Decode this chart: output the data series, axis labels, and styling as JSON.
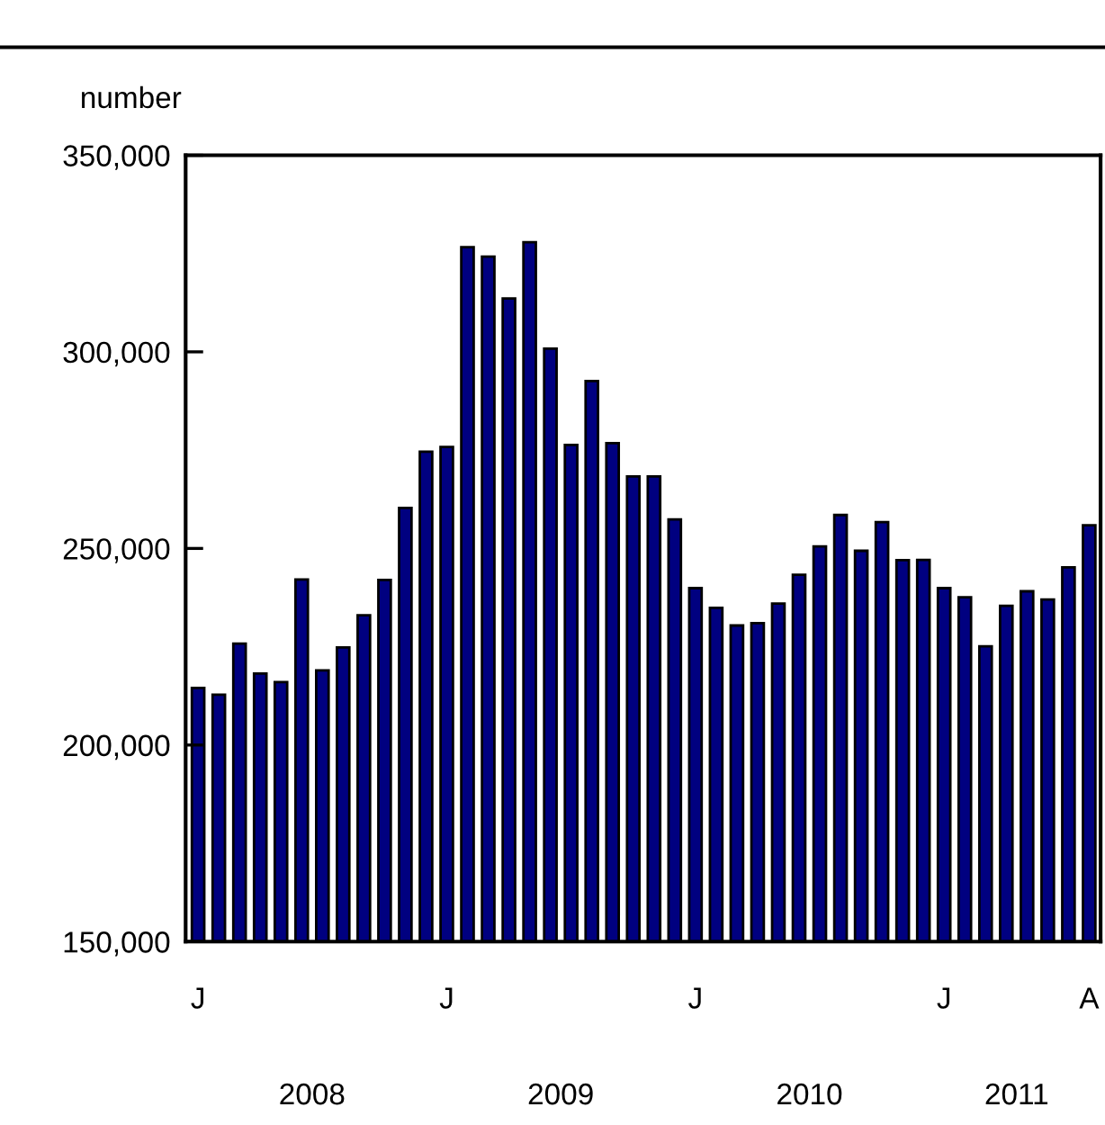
{
  "chart_data": {
    "type": "bar",
    "ylabel": "number",
    "categories": [
      "J",
      null,
      null,
      null,
      null,
      null,
      null,
      null,
      null,
      null,
      null,
      null,
      "J",
      null,
      null,
      null,
      null,
      null,
      null,
      null,
      null,
      null,
      null,
      null,
      "J",
      null,
      null,
      null,
      null,
      null,
      null,
      null,
      null,
      null,
      null,
      null,
      "J",
      null,
      null,
      null,
      null,
      null,
      null,
      "A"
    ],
    "values": [
      214500,
      212800,
      225800,
      218200,
      216000,
      242100,
      219000,
      224800,
      233000,
      242000,
      260300,
      274600,
      275800,
      326600,
      324200,
      313600,
      327900,
      300800,
      276300,
      292600,
      276800,
      268300,
      268300,
      257400,
      239900,
      234900,
      230400,
      231000,
      236000,
      243300,
      250500,
      258500,
      249400,
      256700,
      247000,
      247100,
      239900,
      237600,
      225100,
      235400,
      239100,
      237000,
      245200,
      255900
    ],
    "color": "#000080",
    "ylim": [
      150000,
      350000
    ],
    "yticks": [
      {
        "value": 150000,
        "label": "150,000"
      },
      {
        "value": 200000,
        "label": "200,000"
      },
      {
        "value": 250000,
        "label": "250,000"
      },
      {
        "value": 300000,
        "label": "300,000"
      },
      {
        "value": 350000,
        "label": "350,000"
      }
    ],
    "annotations": [
      "2008",
      "2009",
      "2010",
      "2011"
    ],
    "grid": false,
    "legend": false
  }
}
